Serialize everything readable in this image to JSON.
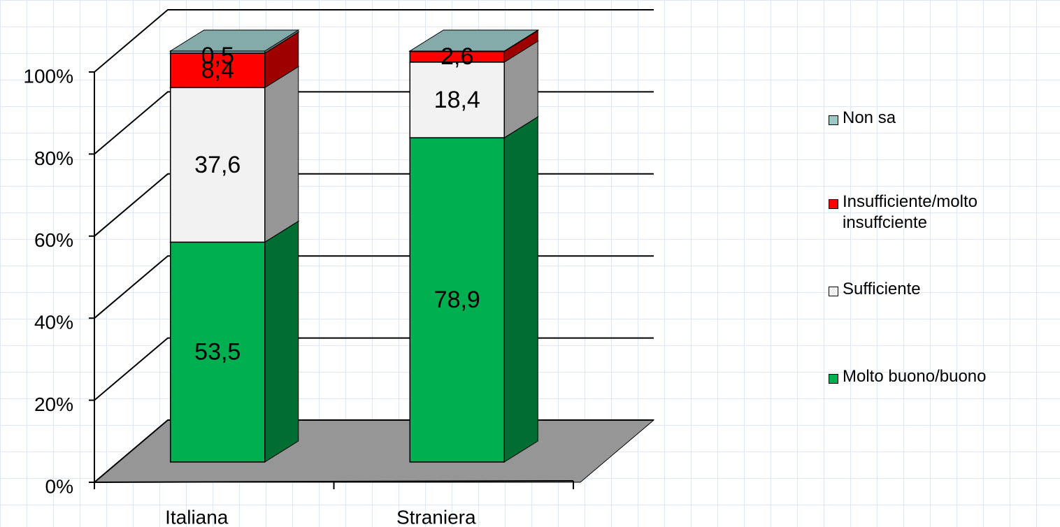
{
  "chart_data": {
    "type": "bar3d_stacked",
    "categories": [
      "Italiana",
      "Straniera"
    ],
    "series": [
      {
        "name": "Molto buono/buono",
        "color": "#00b050",
        "values": [
          53.5,
          78.9
        ],
        "value_labels": [
          "53,5",
          "78,9"
        ]
      },
      {
        "name": "Sufficiente",
        "color": "#f2f2f2",
        "values": [
          37.6,
          18.4
        ],
        "value_labels": [
          "37,6",
          "18,4"
        ]
      },
      {
        "name": "Insufficiente/molto insuffciente",
        "color": "#ff0000",
        "values": [
          8.4,
          2.6
        ],
        "value_labels": [
          "8,4",
          "2,6"
        ]
      },
      {
        "name": "Non sa",
        "color": "#9cc8c8",
        "values": [
          0.5,
          0.1
        ],
        "value_labels": [
          "0,5",
          null
        ]
      }
    ],
    "ylim": [
      0,
      100
    ],
    "yticks": [
      {
        "value": 0,
        "label": "0%"
      },
      {
        "value": 20,
        "label": "20%"
      },
      {
        "value": 40,
        "label": "40%"
      },
      {
        "value": 60,
        "label": "60%"
      },
      {
        "value": 80,
        "label": "80%"
      },
      {
        "value": 100,
        "label": "100%"
      }
    ],
    "grid": true
  }
}
